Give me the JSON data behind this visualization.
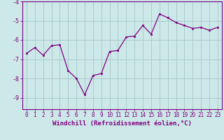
{
  "x": [
    0,
    1,
    2,
    3,
    4,
    5,
    6,
    7,
    8,
    9,
    10,
    11,
    12,
    13,
    14,
    15,
    16,
    17,
    18,
    19,
    20,
    21,
    22,
    23
  ],
  "y": [
    -6.7,
    -6.4,
    -6.8,
    -6.3,
    -6.25,
    -7.6,
    -8.0,
    -8.85,
    -7.85,
    -7.75,
    -6.6,
    -6.55,
    -5.85,
    -5.8,
    -5.25,
    -5.7,
    -4.65,
    -4.85,
    -5.1,
    -5.25,
    -5.4,
    -5.35,
    -5.5,
    -5.35
  ],
  "line_color": "#800080",
  "marker_color": "#800080",
  "bg_color": "#cce8e8",
  "grid_color": "#aacccc",
  "axis_color": "#800080",
  "tick_color": "#800080",
  "xlabel": "Windchill (Refroidissement éolien,°C)",
  "ylim": [
    -9.6,
    -4.0
  ],
  "yticks": [
    -9,
    -8,
    -7,
    -6,
    -5,
    -4
  ],
  "xticks": [
    0,
    1,
    2,
    3,
    4,
    5,
    6,
    7,
    8,
    9,
    10,
    11,
    12,
    13,
    14,
    15,
    16,
    17,
    18,
    19,
    20,
    21,
    22,
    23
  ],
  "xlabel_fontsize": 6.5,
  "tick_fontsize": 5.5
}
